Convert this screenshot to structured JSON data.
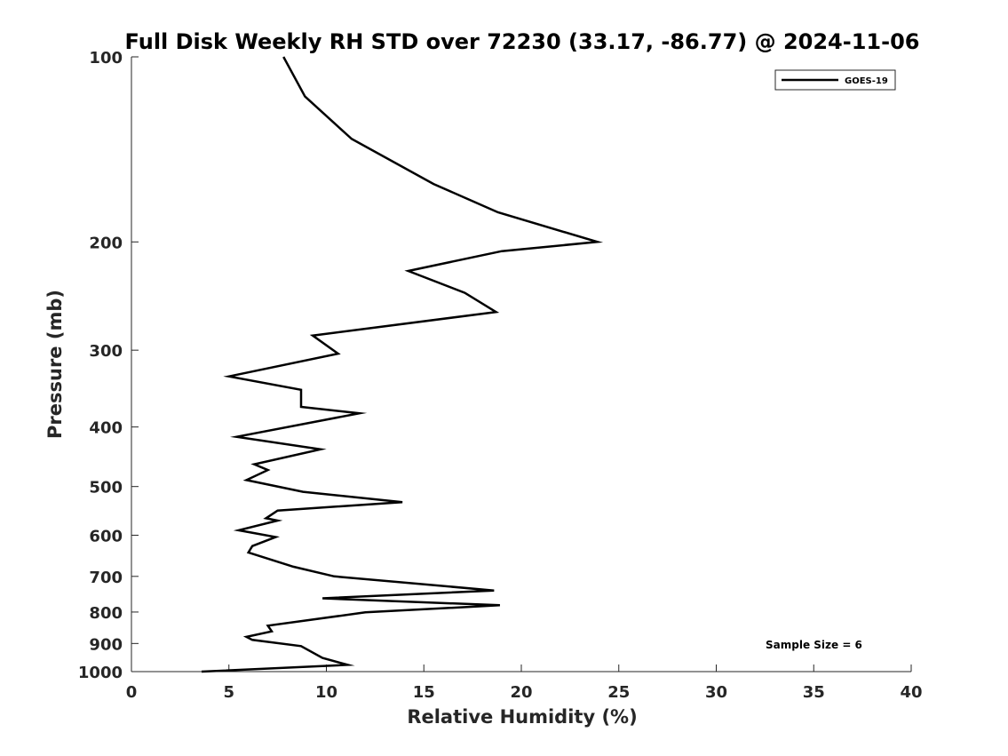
{
  "chart_data": {
    "type": "line",
    "title": "Full Disk Weekly RH STD over 72230 (33.17, -86.77) @ 2024-11-06",
    "xlabel": "Relative Humidity (%)",
    "ylabel": "Pressure (mb)",
    "xlim": [
      0,
      40
    ],
    "ylim": [
      1000,
      100
    ],
    "yscale": "log",
    "reverse_y": true,
    "xticks": [
      0,
      5,
      10,
      15,
      20,
      25,
      30,
      35,
      40
    ],
    "yticks": [
      100,
      200,
      300,
      400,
      500,
      600,
      700,
      800,
      900,
      1000
    ],
    "grid": false,
    "legend_position": "top-right",
    "annotation": "Sample Size = 6",
    "series": [
      {
        "name": "GOES-19",
        "color": "#000000",
        "x": [
          7.8,
          8.9,
          11.3,
          15.5,
          17.2,
          18.8,
          23.9,
          19.0,
          14.2,
          17.1,
          18.7,
          9.3,
          10.6,
          5.0,
          8.7,
          8.7,
          11.7,
          5.4,
          9.7,
          6.3,
          7.0,
          5.9,
          8.8,
          13.9,
          7.5,
          6.9,
          7.5,
          5.5,
          7.4,
          6.2,
          6.0,
          8.3,
          10.4,
          18.6,
          9.8,
          18.9,
          12.0,
          7.0,
          7.2,
          5.9,
          6.2,
          8.7,
          9.8,
          11.1,
          3.6
        ],
        "y": [
          100,
          116,
          136,
          161,
          170,
          179,
          200,
          207,
          223,
          242,
          260,
          284,
          304,
          331,
          348,
          371,
          380,
          415,
          435,
          460,
          470,
          488,
          510,
          530,
          547,
          563,
          568,
          589,
          604,
          625,
          640,
          675,
          700,
          738,
          760,
          780,
          801,
          842,
          860,
          878,
          888,
          909,
          950,
          975,
          1000
        ]
      }
    ]
  }
}
